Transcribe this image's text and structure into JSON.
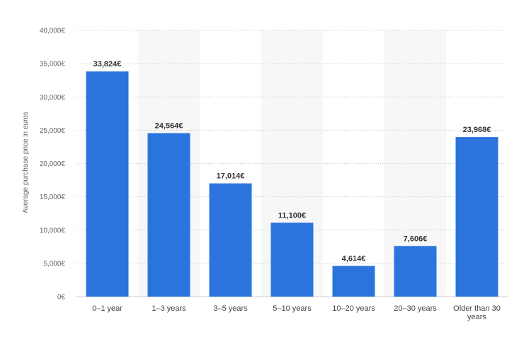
{
  "colors": {
    "bar": "#2b74de",
    "band": "#f7f7f7",
    "grid": "#c8c8c8"
  },
  "chart_data": {
    "type": "bar",
    "title": "",
    "xlabel": "",
    "ylabel": "Average purchase price in euros",
    "ylim": [
      0,
      40000
    ],
    "yticks": [
      0,
      5000,
      10000,
      15000,
      20000,
      25000,
      30000,
      35000,
      40000
    ],
    "ytick_labels": [
      "0€",
      "5,000€",
      "10,000€",
      "15,000€",
      "20,000€",
      "25,000€",
      "30,000€",
      "35,000€",
      "40,000€"
    ],
    "grid": true,
    "categories": [
      "0–1 year",
      "1–3 years",
      "3–5 years",
      "5–10 years",
      "10–20 years",
      "20–30 years",
      "Older than 30 years"
    ],
    "category_lines": [
      [
        "0–1 year"
      ],
      [
        "1–3 years"
      ],
      [
        "3–5 years"
      ],
      [
        "5–10 years"
      ],
      [
        "10–20 years"
      ],
      [
        "20–30 years"
      ],
      [
        "Older than 30",
        "years"
      ]
    ],
    "values": [
      33824,
      24564,
      17014,
      11100,
      4614,
      7606,
      23968
    ],
    "data_labels": [
      "33,824€",
      "24,564€",
      "17,014€",
      "11,100€",
      "4,614€",
      "7,606€",
      "23,968€"
    ]
  }
}
